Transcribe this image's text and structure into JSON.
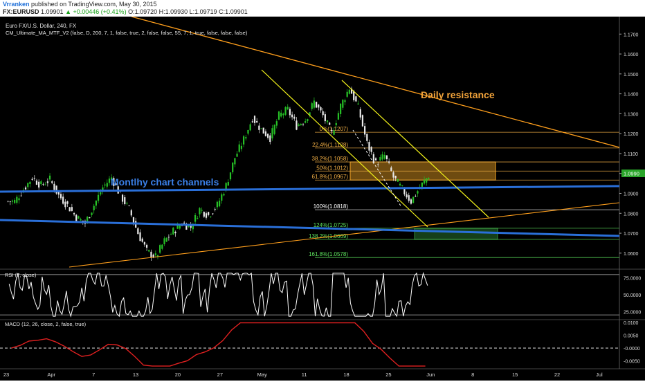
{
  "header": {
    "author": "Vrranken",
    "published": "published on TradingView.com, May 30, 2015",
    "symbol": "FX:EURUSD",
    "price": "1.09901",
    "change": "▲ +0.00446 (+0.41%)",
    "ohlc": "O:1.09720 H:1.09930 L:1.09719 C:1.09901"
  },
  "chart": {
    "title": "Euro FX/U.S. Dollar, 240, FX",
    "indicator": "CM_Ultimate_MA_MTF_V2 (false, D, 200, 7, 1, false, true, 2, false, false, 55, 7, 1, true, false, false, false)",
    "price_tag": "1.0990",
    "annotations": {
      "daily": "Daily resistance",
      "monthly": "Montlhy chart channels"
    }
  },
  "rsi_panel": {
    "label": "RSI (7, close)"
  },
  "macd_panel": {
    "label": "MACD (12, 26, close, 2, false, true)"
  },
  "chart_data": [
    {
      "type": "candlestick",
      "title": "Euro FX/U.S. Dollar, 240, FX",
      "x_ticks": [
        "23",
        "Apr",
        "7",
        "13",
        "20",
        "27",
        "May",
        "11",
        "18",
        "25",
        "Jun",
        "8",
        "15",
        "22",
        "Jul"
      ],
      "y_ticks": [
        "1.1700",
        "1.1600",
        "1.1500",
        "1.1400",
        "1.1300",
        "1.1200",
        "1.1100",
        "1.1000",
        "1.0900",
        "1.0800",
        "1.0700",
        "1.0600"
      ],
      "ylim": [
        1.053,
        1.176
      ],
      "daily_closes": [
        1.086,
        1.092,
        1.098,
        1.094,
        1.097,
        1.089,
        1.084,
        1.078,
        1.075,
        1.084,
        1.093,
        1.098,
        1.089,
        1.082,
        1.07,
        1.061,
        1.058,
        1.066,
        1.071,
        1.075,
        1.073,
        1.082,
        1.079,
        1.084,
        1.094,
        1.108,
        1.117,
        1.128,
        1.122,
        1.118,
        1.129,
        1.132,
        1.124,
        1.127,
        1.136,
        1.129,
        1.12,
        1.134,
        1.143,
        1.133,
        1.115,
        1.105,
        1.109,
        1.098,
        1.092,
        1.086,
        1.093,
        1.099
      ],
      "fibonacci": [
        {
          "label": "0%(1.1207)",
          "value": 1.1207
        },
        {
          "label": "22.4%(1.1128)",
          "value": 1.1128
        },
        {
          "label": "38.2%(1.1058)",
          "value": 1.1058
        },
        {
          "label": "50%(1.1012)",
          "value": 1.1012
        },
        {
          "label": "61.8%(1.0967)",
          "value": 1.0967
        },
        {
          "label": "100%(1.0818)",
          "value": 1.0818
        },
        {
          "label": "124%(1.0725)",
          "value": 1.0725
        },
        {
          "label": "138.2%(1.0669)",
          "value": 1.0669
        },
        {
          "label": "161.8%(1.0578)",
          "value": 1.0578
        }
      ],
      "zones": [
        {
          "name": "resistance-zone",
          "y": [
            1.0967,
            1.1058
          ],
          "color": "#f5a623"
        },
        {
          "name": "target-zone",
          "y": [
            1.0669,
            1.0725
          ],
          "color": "#2e8b3a"
        }
      ],
      "last_price": 1.099,
      "colors": {
        "up": "#26c026",
        "down": "#e8e8e8",
        "fib": "#f7b347",
        "resistance": "#ff9f1c",
        "channel": "#2a6fd8",
        "parallel": "#f2f21a"
      }
    },
    {
      "type": "line",
      "title": "RSI (7, close)",
      "y_ticks": [
        "75.0000",
        "50.0000",
        "25.0000"
      ],
      "ylim": [
        15,
        85
      ],
      "levels": [
        80,
        20
      ],
      "color": "#ffffff"
    },
    {
      "type": "line",
      "title": "MACD (12, 26, close, 2, false, true)",
      "y_ticks": [
        "0.0100",
        "0.0050",
        "-0.0000",
        "-0.0050"
      ],
      "ylim": [
        -0.0075,
        0.0105
      ],
      "color": "#e02020"
    }
  ]
}
